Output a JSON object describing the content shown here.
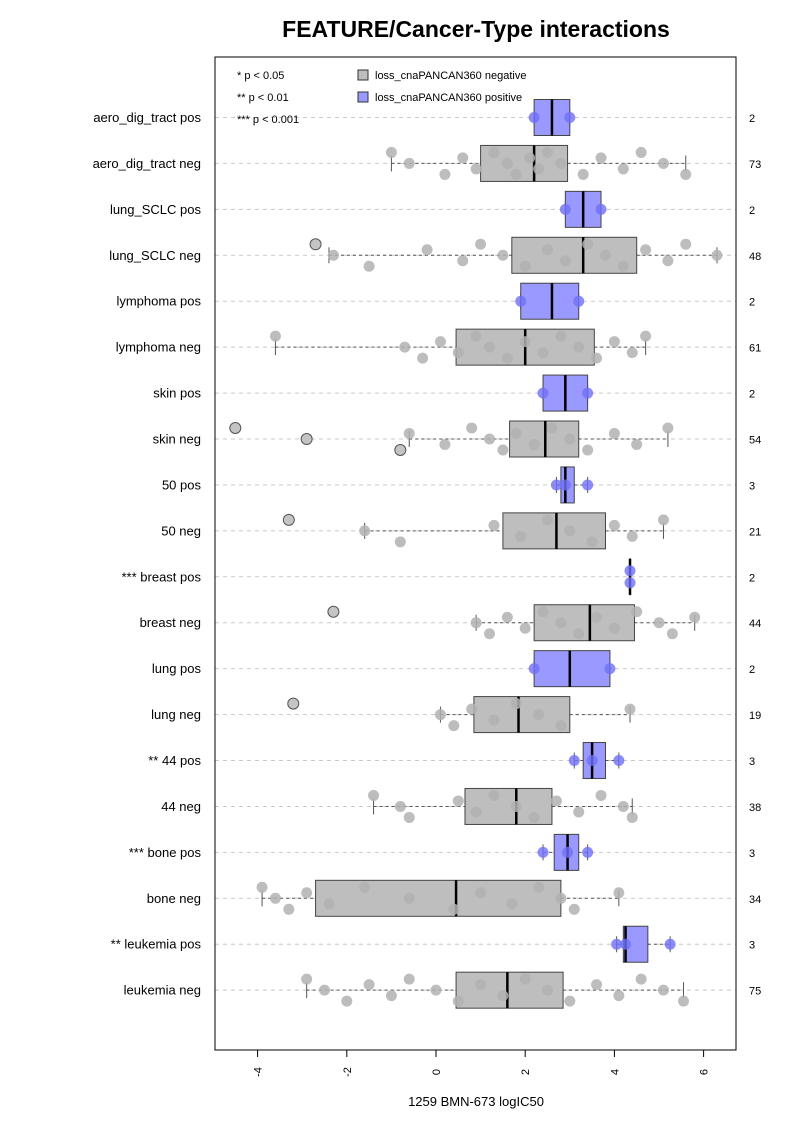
{
  "chart_data": {
    "type": "boxplot",
    "orientation": "horizontal",
    "title": "FEATURE/Cancer-Type interactions",
    "xlabel": "1259 BMN-673 logIC50",
    "xlim": [
      -5,
      6.8
    ],
    "x_ticks": [
      -4,
      -2,
      0,
      2,
      4,
      6
    ],
    "grid": "horizontal dashed",
    "significance_legend": [
      "* p < 0.05",
      "** p < 0.01",
      "*** p < 0.001"
    ],
    "series": [
      {
        "name": "loss_cnaPANCAN360 negative",
        "color": "#bebebe"
      },
      {
        "name": "loss_cnaPANCAN360 positive",
        "color": "#9999ff"
      }
    ],
    "groups": [
      {
        "label": "aero_dig_tract pos",
        "count": "2",
        "kind": "pos",
        "stats": [
          2.2,
          2.2,
          2.6,
          3.0,
          3.0
        ],
        "points": [
          2.2,
          3.0
        ]
      },
      {
        "label": "aero_dig_tract neg",
        "count": "73",
        "kind": "neg",
        "stats": [
          -1.0,
          1.0,
          2.2,
          2.95,
          5.6
        ],
        "points": [
          -1.0,
          -0.6,
          0.2,
          0.6,
          0.9,
          1.3,
          1.6,
          1.8,
          2.1,
          2.3,
          2.5,
          2.8,
          3.3,
          3.7,
          4.2,
          4.6,
          5.1,
          5.6
        ]
      },
      {
        "label": "lung_SCLC pos",
        "count": "2",
        "kind": "pos",
        "stats": [
          2.9,
          2.9,
          3.3,
          3.7,
          3.7
        ],
        "points": [
          2.9,
          3.7
        ]
      },
      {
        "label": "lung_SCLC neg",
        "count": "48",
        "kind": "neg",
        "stats": [
          -2.4,
          1.7,
          3.3,
          4.5,
          6.3
        ],
        "points": [
          -2.7,
          -2.3,
          -1.5,
          -0.2,
          0.6,
          1.0,
          1.5,
          2.0,
          2.5,
          2.9,
          3.4,
          3.8,
          4.2,
          4.7,
          5.2,
          5.6,
          6.3
        ]
      },
      {
        "label": "lymphoma pos",
        "count": "2",
        "kind": "pos",
        "stats": [
          1.9,
          1.9,
          2.6,
          3.2,
          3.2
        ],
        "points": [
          1.9,
          3.2
        ]
      },
      {
        "label": "lymphoma neg",
        "count": "61",
        "kind": "neg",
        "stats": [
          -3.6,
          0.45,
          2.0,
          3.55,
          4.7
        ],
        "points": [
          -3.6,
          -0.7,
          -0.3,
          0.1,
          0.5,
          0.9,
          1.2,
          1.6,
          2.0,
          2.4,
          2.8,
          3.2,
          3.6,
          4.0,
          4.4,
          4.7
        ]
      },
      {
        "label": "skin pos",
        "count": "2",
        "kind": "pos",
        "stats": [
          2.4,
          2.4,
          2.9,
          3.4,
          3.4
        ],
        "points": [
          2.4,
          3.4
        ]
      },
      {
        "label": "skin neg",
        "count": "54",
        "kind": "neg",
        "stats": [
          -0.6,
          1.65,
          2.45,
          3.2,
          5.2
        ],
        "points": [
          -4.5,
          -2.9,
          -0.8,
          -0.6,
          0.2,
          0.8,
          1.2,
          1.5,
          1.8,
          2.2,
          2.6,
          3.0,
          3.4,
          4.0,
          4.5,
          5.2
        ]
      },
      {
        "label": "50 pos",
        "count": "3",
        "kind": "pos",
        "stats": [
          2.7,
          2.8,
          2.9,
          3.1,
          3.4
        ],
        "points": [
          2.7,
          2.9,
          3.4
        ]
      },
      {
        "label": "50 neg",
        "count": "21",
        "kind": "neg",
        "stats": [
          -1.6,
          1.5,
          2.7,
          3.8,
          5.1
        ],
        "points": [
          -3.3,
          -1.6,
          -0.8,
          1.3,
          1.9,
          2.5,
          3.0,
          3.5,
          4.0,
          4.4,
          5.1
        ]
      },
      {
        "label": "*** breast pos",
        "count": "2",
        "kind": "pos",
        "stats": [
          4.35,
          4.35,
          4.35,
          4.35,
          4.35
        ],
        "points": [
          4.35,
          4.35
        ]
      },
      {
        "label": "breast neg",
        "count": "44",
        "kind": "neg",
        "stats": [
          0.9,
          2.2,
          3.45,
          4.45,
          5.8
        ],
        "points": [
          -2.3,
          0.9,
          1.2,
          1.6,
          2.0,
          2.4,
          2.8,
          3.2,
          3.6,
          4.0,
          4.5,
          5.0,
          5.3,
          5.8
        ]
      },
      {
        "label": "lung pos",
        "count": "2",
        "kind": "pos",
        "stats": [
          2.2,
          2.2,
          3.0,
          3.9,
          3.9
        ],
        "points": [
          2.2,
          3.9
        ]
      },
      {
        "label": "lung neg",
        "count": "19",
        "kind": "neg",
        "stats": [
          0.1,
          0.85,
          1.85,
          3.0,
          4.35
        ],
        "points": [
          -3.2,
          0.1,
          0.4,
          0.8,
          1.3,
          1.8,
          2.3,
          2.8,
          4.35
        ]
      },
      {
        "label": "** 44 pos",
        "count": "3",
        "kind": "pos",
        "stats": [
          3.1,
          3.3,
          3.5,
          3.8,
          4.1
        ],
        "points": [
          3.1,
          3.5,
          4.1
        ]
      },
      {
        "label": "44 neg",
        "count": "38",
        "kind": "neg",
        "stats": [
          -1.4,
          0.65,
          1.8,
          2.6,
          4.4
        ],
        "points": [
          -1.4,
          -0.8,
          -0.6,
          0.5,
          0.9,
          1.3,
          1.8,
          2.2,
          2.7,
          3.2,
          3.7,
          4.2,
          4.4
        ]
      },
      {
        "label": "*** bone pos",
        "count": "3",
        "kind": "pos",
        "stats": [
          2.4,
          2.65,
          2.95,
          3.2,
          3.4
        ],
        "points": [
          2.4,
          2.95,
          3.4
        ]
      },
      {
        "label": "bone neg",
        "count": "34",
        "kind": "neg",
        "stats": [
          -3.9,
          -2.7,
          0.45,
          2.8,
          4.1
        ],
        "points": [
          -3.9,
          -3.6,
          -3.3,
          -2.9,
          -2.4,
          -1.6,
          -0.6,
          0.4,
          1.0,
          1.7,
          2.3,
          2.8,
          3.1,
          4.1
        ]
      },
      {
        "label": "** leukemia pos",
        "count": "3",
        "kind": "pos",
        "stats": [
          4.05,
          4.2,
          4.25,
          4.75,
          5.25
        ],
        "points": [
          4.05,
          4.25,
          5.25
        ]
      },
      {
        "label": "leukemia neg",
        "count": "75",
        "kind": "neg",
        "stats": [
          -2.9,
          0.45,
          1.6,
          2.85,
          5.55
        ],
        "points": [
          -2.9,
          -2.5,
          -2.0,
          -1.5,
          -1.0,
          -0.6,
          0.0,
          0.5,
          1.0,
          1.5,
          2.0,
          2.5,
          3.0,
          3.6,
          4.1,
          4.6,
          5.1,
          5.55
        ]
      }
    ]
  }
}
